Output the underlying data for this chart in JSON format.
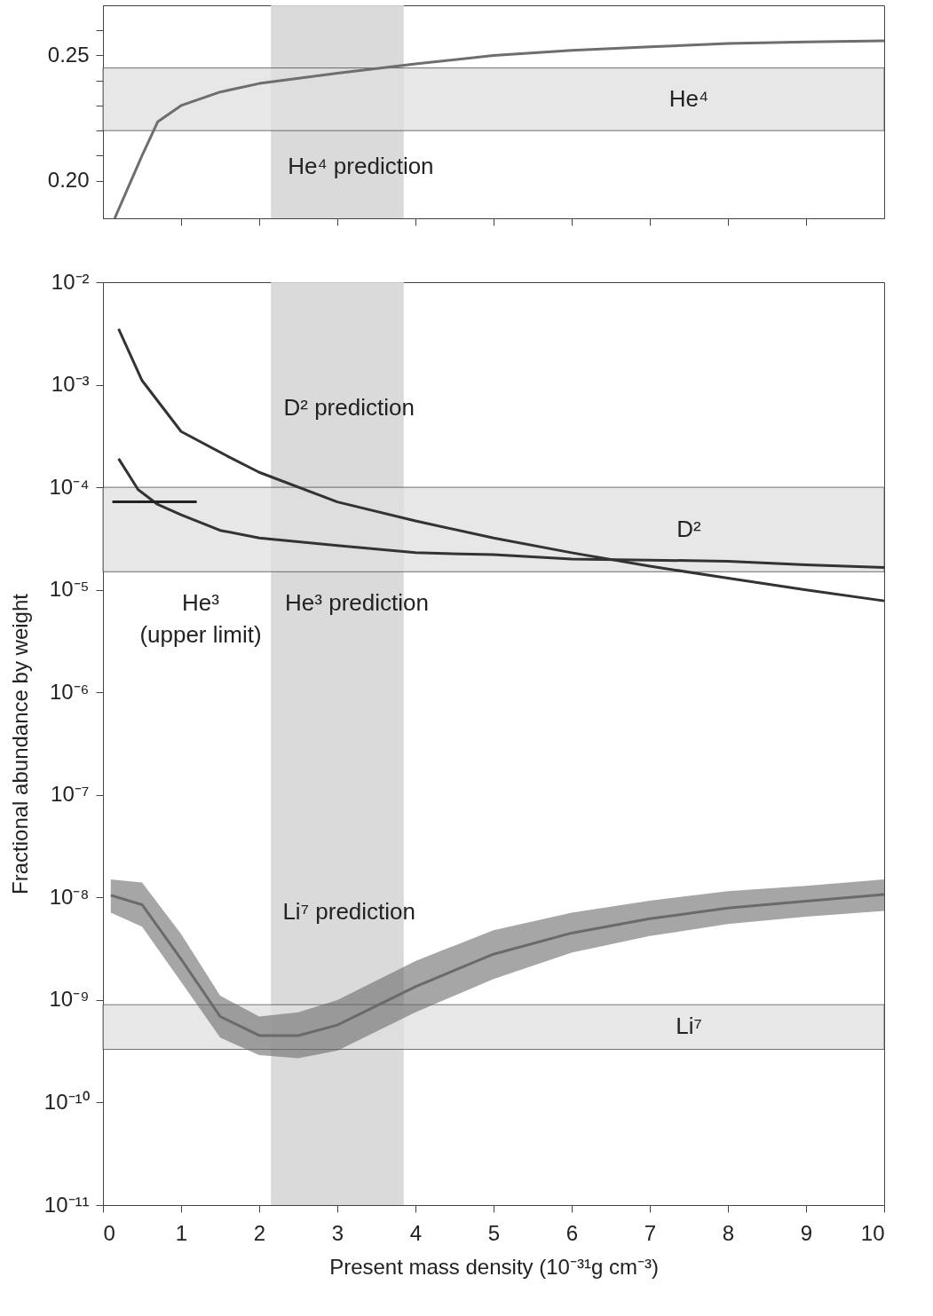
{
  "chart_data": [
    {
      "type": "line",
      "xlim": [
        0,
        10
      ],
      "ylim": [
        0.185,
        0.27
      ],
      "tick_labels": "y",
      "grid": false,
      "xticks": [
        {
          "value": 1,
          "label": null
        },
        {
          "value": 2,
          "label": null
        },
        {
          "value": 3,
          "label": null
        },
        {
          "value": 4,
          "label": null
        },
        {
          "value": 5,
          "label": null
        },
        {
          "value": 6,
          "label": null
        },
        {
          "value": 7,
          "label": null
        },
        {
          "value": 8,
          "label": null
        },
        {
          "value": 9,
          "label": null
        }
      ],
      "yticks": [
        {
          "value": 0.2,
          "label": "0.20"
        },
        {
          "value": 0.21,
          "label": null
        },
        {
          "value": 0.22,
          "label": null
        },
        {
          "value": 0.23,
          "label": null
        },
        {
          "value": 0.24,
          "label": null
        },
        0.25,
        {
          "value": 0.26,
          "label": null
        }
      ],
      "series": [
        {
          "color": "#6e6e6e",
          "x": [
            0.15,
            0.5,
            0.7,
            1,
            1.5,
            2,
            3,
            4,
            5,
            6,
            7,
            8,
            9,
            10
          ],
          "values": [
            0.185,
            0.21,
            0.2235,
            0.23,
            0.2354,
            0.2388,
            0.2429,
            0.2466,
            0.25,
            0.252,
            0.2534,
            0.2548,
            0.2554,
            0.2558
          ]
        }
      ],
      "bands": [
        {
          "axis": "x",
          "from": 2.15,
          "to": 3.85,
          "color": "#d6d6d6"
        },
        {
          "axis": "y",
          "from": 0.22,
          "to": 0.245,
          "label": "He⁴",
          "color": "#e0e0e0"
        }
      ],
      "annotations": [
        "He⁴ prediction"
      ]
    },
    {
      "type": "line",
      "xlim": [
        0,
        10
      ],
      "ylim": [
        1e-11,
        0.01
      ],
      "log": true,
      "grid": false,
      "xlabel": "Present mass density (10⁻³¹g cm⁻³)",
      "ylabel": "Fractional abundance by weight",
      "xticks": [
        0,
        1,
        2,
        3,
        4,
        5,
        6,
        7,
        8,
        9,
        10
      ],
      "yticks": [
        {
          "value": 1e-11,
          "label": "10⁻¹¹"
        },
        {
          "value": 1e-10,
          "label": "10⁻¹⁰"
        },
        {
          "value": 1e-09,
          "label": "10⁻⁹"
        },
        {
          "value": 1e-08,
          "label": "10⁻⁸"
        },
        {
          "value": 1e-07,
          "label": "10⁻⁷"
        },
        {
          "value": 1e-06,
          "label": "10⁻⁶"
        },
        {
          "value": 1e-05,
          "label": "10⁻⁵"
        },
        {
          "value": 0.0001,
          "label": "10⁻⁴"
        },
        {
          "value": 0.001,
          "label": "10⁻³"
        },
        {
          "value": 0.01,
          "label": "10⁻²"
        }
      ],
      "series": [
        {
          "color": "#333333",
          "x": [
            0.2,
            0.5,
            1,
            1.6,
            2,
            3,
            4,
            5,
            6,
            7,
            8,
            9,
            10
          ],
          "values": [
            0.0035,
            0.0011,
            0.00035,
            0.0002,
            0.00014,
            7.2e-05,
            4.7e-05,
            3.2e-05,
            2.3e-05,
            1.7e-05,
            1.3e-05,
            1e-05,
            7.8e-06
          ]
        },
        {
          "color": "#333333",
          "x": [
            0.2,
            0.45,
            0.7,
            1,
            1.5,
            2,
            3,
            4,
            5,
            6,
            7,
            8,
            9,
            10
          ],
          "values": [
            0.00019,
            9.5e-05,
            6.8e-05,
            5.4e-05,
            3.8e-05,
            3.2e-05,
            2.7e-05,
            2.3e-05,
            2.2e-05,
            2e-05,
            1.95e-05,
            1.9e-05,
            1.75e-05,
            1.65e-05
          ]
        },
        {
          "color": "#222222",
          "x": [
            0.12,
            1.2
          ],
          "values": [
            7.2e-05,
            7.2e-05
          ]
        },
        {
          "color": "#6a6a6a",
          "x": [
            0.1,
            0.5,
            1,
            1.5,
            2,
            2.5,
            3,
            4,
            5,
            6,
            7,
            8,
            9,
            10
          ],
          "values": [
            1.05e-08,
            8.5e-09,
            2.5e-09,
            6.9e-10,
            4.5e-10,
            4.5e-10,
            5.7e-10,
            1.35e-09,
            2.8e-09,
            4.5e-09,
            6.2e-09,
            7.9e-09,
            9.2e-09,
            1.07e-08
          ],
          "lower": [
            7.1e-09,
            5.2e-09,
            1.5e-09,
            4.3e-10,
            2.9e-10,
            2.7e-10,
            3.2e-10,
            7.6e-10,
            1.6e-09,
            2.9e-09,
            4.2e-09,
            5.5e-09,
            6.5e-09,
            7.4e-09
          ],
          "upper": [
            1.5e-08,
            1.4e-08,
            4.4e-09,
            1.1e-09,
            6.9e-10,
            7.6e-10,
            1e-09,
            2.4e-09,
            4.8e-09,
            7.1e-09,
            9.3e-09,
            1.15e-08,
            1.3e-08,
            1.5e-08
          ]
        }
      ],
      "bands": [
        {
          "axis": "x",
          "from": 2.15,
          "to": 3.85,
          "color": "#d6d6d6"
        },
        {
          "axis": "y",
          "from": 1.5e-05,
          "to": 0.0001,
          "label": "D²",
          "color": "#e0e0e0"
        },
        {
          "axis": "y",
          "from": 3.3e-10,
          "to": 9e-10,
          "label": "Li⁷",
          "color": "#e0e0e0"
        }
      ],
      "annotations": [
        "D² prediction",
        "He³ prediction",
        "He³",
        "(upper limit)",
        "Li⁷ prediction"
      ]
    }
  ]
}
